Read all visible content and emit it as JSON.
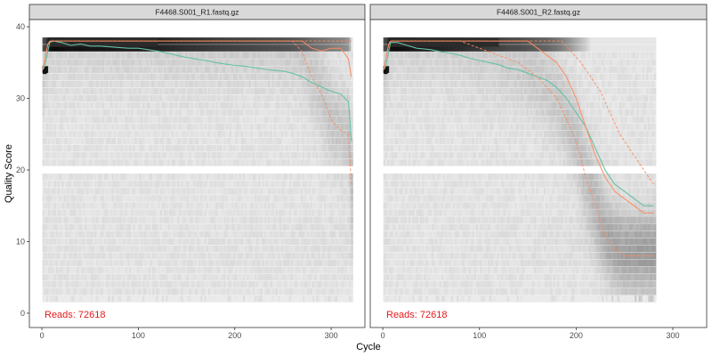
{
  "figure": {
    "xlabel": "Cycle",
    "ylabel": "Quality Score"
  },
  "colors": {
    "mean": "#66c2a5",
    "quartiles": "#fc8d62",
    "reads": "#e31a1c",
    "strip_bg": "#d9d9d9",
    "panel_border": "#333333",
    "heat_low": "#f2f2f2",
    "heat_high": "#000000"
  },
  "chart_data": [
    {
      "type": "heatmap",
      "title": "F4468.S001_R1.fastq.gz",
      "reads_label": "Reads:  72618",
      "xlim": [
        -13,
        335
      ],
      "ylim": [
        -2,
        41
      ],
      "xticks": [
        0,
        100,
        200,
        300
      ],
      "yticks": [
        0,
        10,
        20,
        30,
        40
      ],
      "cycles": 321,
      "grid": false,
      "series": [
        {
          "name": "mean",
          "points": [
            [
              1,
              34
            ],
            [
              3,
              34.5
            ],
            [
              6,
              36.5
            ],
            [
              8,
              37.8
            ],
            [
              12,
              38.0
            ],
            [
              20,
              37.8
            ],
            [
              30,
              37.4
            ],
            [
              40,
              37.6
            ],
            [
              50,
              37.3
            ],
            [
              60,
              37.3
            ],
            [
              70,
              37.2
            ],
            [
              80,
              37.1
            ],
            [
              90,
              37.0
            ],
            [
              100,
              37.0
            ],
            [
              110,
              36.8
            ],
            [
              120,
              36.6
            ],
            [
              130,
              36.3
            ],
            [
              140,
              36.0
            ],
            [
              150,
              35.7
            ],
            [
              160,
              35.5
            ],
            [
              170,
              35.3
            ],
            [
              180,
              35.0
            ],
            [
              190,
              34.8
            ],
            [
              200,
              34.6
            ],
            [
              210,
              34.5
            ],
            [
              220,
              34.3
            ],
            [
              230,
              34.1
            ],
            [
              240,
              33.9
            ],
            [
              250,
              33.8
            ],
            [
              260,
              33.5
            ],
            [
              270,
              33.0
            ],
            [
              280,
              32.2
            ],
            [
              290,
              31.6
            ],
            [
              300,
              31.0
            ],
            [
              310,
              30.6
            ],
            [
              318,
              29.5
            ],
            [
              321,
              24
            ]
          ]
        },
        {
          "name": "median",
          "points": [
            [
              1,
              34
            ],
            [
              6,
              37.5
            ],
            [
              8,
              38.0
            ],
            [
              270,
              38.0
            ],
            [
              280,
              37.0
            ],
            [
              290,
              36.6
            ],
            [
              300,
              37.0
            ],
            [
              310,
              37.0
            ],
            [
              318,
              35.5
            ],
            [
              321,
              33
            ]
          ]
        },
        {
          "name": "q25",
          "points": [
            [
              1,
              34
            ],
            [
              6,
              37.5
            ],
            [
              8,
              38.0
            ],
            [
              260,
              38.0
            ],
            [
              270,
              36.5
            ],
            [
              280,
              33.0
            ],
            [
              290,
              30.5
            ],
            [
              300,
              27.0
            ],
            [
              310,
              25.5
            ],
            [
              318,
              25.0
            ],
            [
              321,
              18
            ]
          ]
        },
        {
          "name": "q75",
          "points": [
            [
              1,
              34
            ],
            [
              6,
              37.5
            ],
            [
              8,
              38.0
            ],
            [
              321,
              38.0
            ]
          ]
        }
      ]
    },
    {
      "type": "heatmap",
      "title": "F4468.S001_R2.fastq.gz",
      "reads_label": "Reads:  72618",
      "xlim": [
        -13,
        335
      ],
      "ylim": [
        -2,
        41
      ],
      "xticks": [
        0,
        100,
        200,
        300
      ],
      "yticks": [
        0,
        10,
        20,
        30,
        40
      ],
      "cycles": 281,
      "grid": false,
      "series": [
        {
          "name": "mean",
          "points": [
            [
              1,
              34
            ],
            [
              3,
              34.5
            ],
            [
              6,
              36.5
            ],
            [
              8,
              37.8
            ],
            [
              15,
              37.8
            ],
            [
              25,
              37.4
            ],
            [
              35,
              37.0
            ],
            [
              50,
              36.8
            ],
            [
              60,
              36.5
            ],
            [
              70,
              36.3
            ],
            [
              80,
              36.0
            ],
            [
              90,
              35.6
            ],
            [
              100,
              35.3
            ],
            [
              110,
              35.0
            ],
            [
              120,
              34.7
            ],
            [
              130,
              34.2
            ],
            [
              140,
              34.0
            ],
            [
              150,
              33.5
            ],
            [
              160,
              33.0
            ],
            [
              170,
              32.5
            ],
            [
              180,
              31.5
            ],
            [
              190,
              30.0
            ],
            [
              200,
              28.0
            ],
            [
              210,
              26.0
            ],
            [
              220,
              23.0
            ],
            [
              230,
              20.0
            ],
            [
              240,
              18.0
            ],
            [
              250,
              17.0
            ],
            [
              260,
              16.0
            ],
            [
              270,
              15.0
            ],
            [
              280,
              15.0
            ]
          ]
        },
        {
          "name": "median",
          "points": [
            [
              1,
              34
            ],
            [
              6,
              37.5
            ],
            [
              8,
              38.0
            ],
            [
              150,
              38.0
            ],
            [
              160,
              37.0
            ],
            [
              170,
              36.0
            ],
            [
              180,
              35.0
            ],
            [
              190,
              33.0
            ],
            [
              200,
              30.0
            ],
            [
              210,
              26.0
            ],
            [
              220,
              22.0
            ],
            [
              230,
              19.0
            ],
            [
              240,
              17.0
            ],
            [
              250,
              16.0
            ],
            [
              260,
              15.0
            ],
            [
              270,
              14.0
            ],
            [
              280,
              14.0
            ]
          ]
        },
        {
          "name": "q25",
          "points": [
            [
              1,
              34
            ],
            [
              6,
              37.5
            ],
            [
              8,
              38.0
            ],
            [
              80,
              38.0
            ],
            [
              100,
              37.0
            ],
            [
              140,
              35.0
            ],
            [
              160,
              33.0
            ],
            [
              180,
              30.0
            ],
            [
              190,
              27.0
            ],
            [
              200,
              24.0
            ],
            [
              210,
              19.0
            ],
            [
              220,
              15.0
            ],
            [
              230,
              11.0
            ],
            [
              240,
              9.0
            ],
            [
              250,
              8.0
            ],
            [
              260,
              8.0
            ],
            [
              270,
              8.0
            ],
            [
              280,
              8.0
            ]
          ]
        },
        {
          "name": "q75",
          "points": [
            [
              1,
              34
            ],
            [
              6,
              37.5
            ],
            [
              8,
              38.0
            ],
            [
              185,
              38.0
            ],
            [
              195,
              36.5
            ],
            [
              205,
              35.0
            ],
            [
              215,
              33.0
            ],
            [
              225,
              31.0
            ],
            [
              235,
              28.0
            ],
            [
              245,
              25.0
            ],
            [
              255,
              23.0
            ],
            [
              265,
              21.0
            ],
            [
              275,
              19.0
            ],
            [
              280,
              18.0
            ]
          ]
        }
      ]
    }
  ]
}
